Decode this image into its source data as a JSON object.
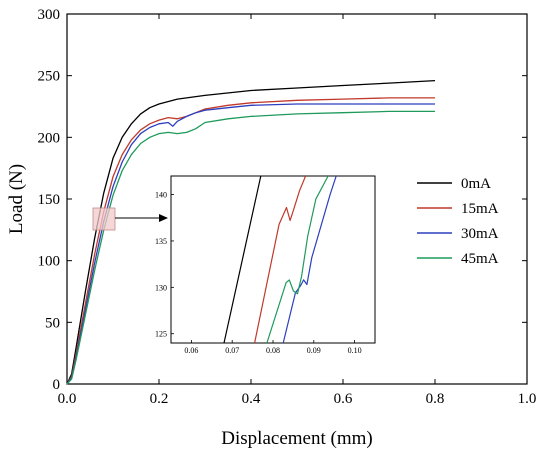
{
  "chart_data": [
    {
      "type": "line",
      "title": "",
      "xlabel": "Displacement (mm)",
      "ylabel": "Load (N)",
      "xlim": [
        0,
        1.0
      ],
      "ylim": [
        0,
        300
      ],
      "x_ticks": [
        "0.0",
        "0.2",
        "0.4",
        "0.6",
        "0.8",
        "1.0"
      ],
      "y_ticks": [
        "0",
        "50",
        "100",
        "150",
        "200",
        "250",
        "300"
      ],
      "legend_position": "right",
      "grid": false,
      "series": [
        {
          "name": "0mA",
          "color": "#000000",
          "x": [
            0,
            0.01,
            0.02,
            0.04,
            0.06,
            0.08,
            0.1,
            0.12,
            0.14,
            0.16,
            0.18,
            0.2,
            0.24,
            0.3,
            0.4,
            0.5,
            0.6,
            0.7,
            0.8
          ],
          "y": [
            0,
            8,
            30,
            75,
            118,
            155,
            183,
            200,
            211,
            219,
            224,
            227,
            231,
            234,
            238,
            240,
            242,
            244,
            246
          ]
        },
        {
          "name": "15mA",
          "color": "#c0392b",
          "x": [
            0,
            0.01,
            0.02,
            0.04,
            0.06,
            0.08,
            0.1,
            0.12,
            0.14,
            0.16,
            0.18,
            0.2,
            0.22,
            0.24,
            0.26,
            0.28,
            0.3,
            0.35,
            0.4,
            0.5,
            0.6,
            0.7,
            0.8
          ],
          "y": [
            0,
            6,
            25,
            65,
            105,
            140,
            168,
            186,
            198,
            206,
            211,
            214,
            216,
            215,
            217,
            220,
            223,
            226,
            228,
            230,
            231,
            232,
            232
          ]
        },
        {
          "name": "30mA",
          "color": "#2b3fbf",
          "x": [
            0,
            0.01,
            0.02,
            0.04,
            0.06,
            0.08,
            0.1,
            0.12,
            0.14,
            0.16,
            0.18,
            0.2,
            0.22,
            0.23,
            0.24,
            0.26,
            0.28,
            0.3,
            0.35,
            0.4,
            0.5,
            0.6,
            0.7,
            0.8
          ],
          "y": [
            0,
            5,
            22,
            60,
            98,
            132,
            160,
            180,
            194,
            203,
            208,
            211,
            212,
            209,
            213,
            217,
            220,
            222,
            224,
            226,
            227,
            227,
            227,
            227
          ]
        },
        {
          "name": "45mA",
          "color": "#1e9a5c",
          "x": [
            0,
            0.01,
            0.02,
            0.04,
            0.06,
            0.08,
            0.1,
            0.12,
            0.14,
            0.16,
            0.18,
            0.2,
            0.22,
            0.24,
            0.26,
            0.28,
            0.3,
            0.35,
            0.4,
            0.5,
            0.6,
            0.7,
            0.8
          ],
          "y": [
            0,
            4,
            20,
            56,
            92,
            125,
            153,
            173,
            186,
            195,
            200,
            203,
            204,
            203,
            204,
            207,
            212,
            215,
            217,
            219,
            220,
            221,
            221
          ]
        }
      ]
    },
    {
      "type": "line",
      "title": "",
      "xlabel": "",
      "ylabel": "",
      "xlim": [
        0.055,
        0.105
      ],
      "ylim": [
        124,
        142
      ],
      "x_ticks": [
        "0.06",
        "0.07",
        "0.08",
        "0.09",
        "0.10"
      ],
      "y_ticks": [
        "125",
        "130",
        "135",
        "140"
      ],
      "series": [
        {
          "name": "0mA",
          "color": "#000000",
          "x": [
            0.068,
            0.077
          ],
          "y": [
            124,
            142
          ]
        },
        {
          "name": "15mA",
          "color": "#c0392b",
          "x": [
            0.0755,
            0.0815,
            0.0833,
            0.0842,
            0.085,
            0.0865,
            0.088
          ],
          "y": [
            124,
            136.8,
            138.6,
            137.2,
            138.3,
            140.4,
            142
          ]
        },
        {
          "name": "30mA",
          "color": "#2b3fbf",
          "x": [
            0.0825,
            0.0855,
            0.0868,
            0.0875,
            0.0883,
            0.0895,
            0.094,
            0.0955
          ],
          "y": [
            124,
            129.4,
            130.2,
            130.8,
            130.3,
            133.2,
            140,
            142
          ]
        },
        {
          "name": "45mA",
          "color": "#1e9a5c",
          "x": [
            0.0785,
            0.0832,
            0.084,
            0.085,
            0.086,
            0.087,
            0.0885,
            0.0905,
            0.0935
          ],
          "y": [
            124,
            130.5,
            130.8,
            129.6,
            129.3,
            131.2,
            135.5,
            139.5,
            142
          ]
        }
      ]
    }
  ]
}
